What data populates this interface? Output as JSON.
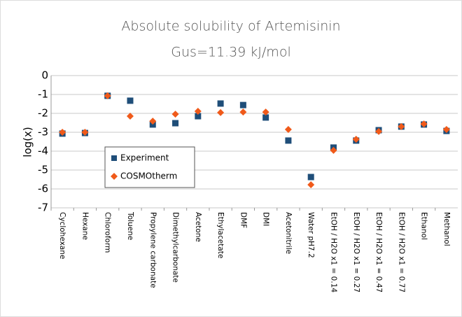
{
  "chart_data": {
    "type": "scatter",
    "title": "Absolute solubility of Artemisinin",
    "subtitle": "Gus=11.39 kJ/mol",
    "y_label": "log(x)",
    "categories": [
      "Cyclohexane",
      "Hexane",
      "Chloroform",
      "Toluene",
      "Propylene carbonate",
      "Dimethylcarbonate",
      "Acetone",
      "Ethylacetate",
      "DMF",
      "DMI",
      "Acetonitrile",
      "Water pH7.2",
      "EtOH / H2O x1 = 0.14",
      "EtOH / H2O x1 = 0.27",
      "EtOH / H2O x1 = 0.47",
      "EtOH / H2O x1 = 0.77",
      "Ethanol",
      "Methanol"
    ],
    "series": [
      {
        "name": "Experiment",
        "color": "#1f4e79",
        "marker": "square",
        "values": [
          -3.07,
          -3.04,
          -1.07,
          -1.33,
          -2.59,
          -2.52,
          -2.15,
          -1.48,
          -1.56,
          -2.22,
          -3.44,
          -5.37,
          -3.81,
          -3.44,
          -2.89,
          -2.7,
          -2.59,
          -2.93
        ]
      },
      {
        "name": "COSMOtherm",
        "color": "#f05a1a",
        "marker": "diamond",
        "values": [
          -3.0,
          -3.0,
          -1.07,
          -2.15,
          -2.41,
          -2.04,
          -1.89,
          -1.96,
          -1.93,
          -1.93,
          -2.85,
          -5.78,
          -3.96,
          -3.37,
          -2.96,
          -2.7,
          -2.56,
          -2.85
        ]
      }
    ],
    "ylim": [
      -7,
      0
    ],
    "yticks": [
      0,
      -1,
      -2,
      -3,
      -4,
      -5,
      -6,
      -7
    ],
    "grid": true
  }
}
